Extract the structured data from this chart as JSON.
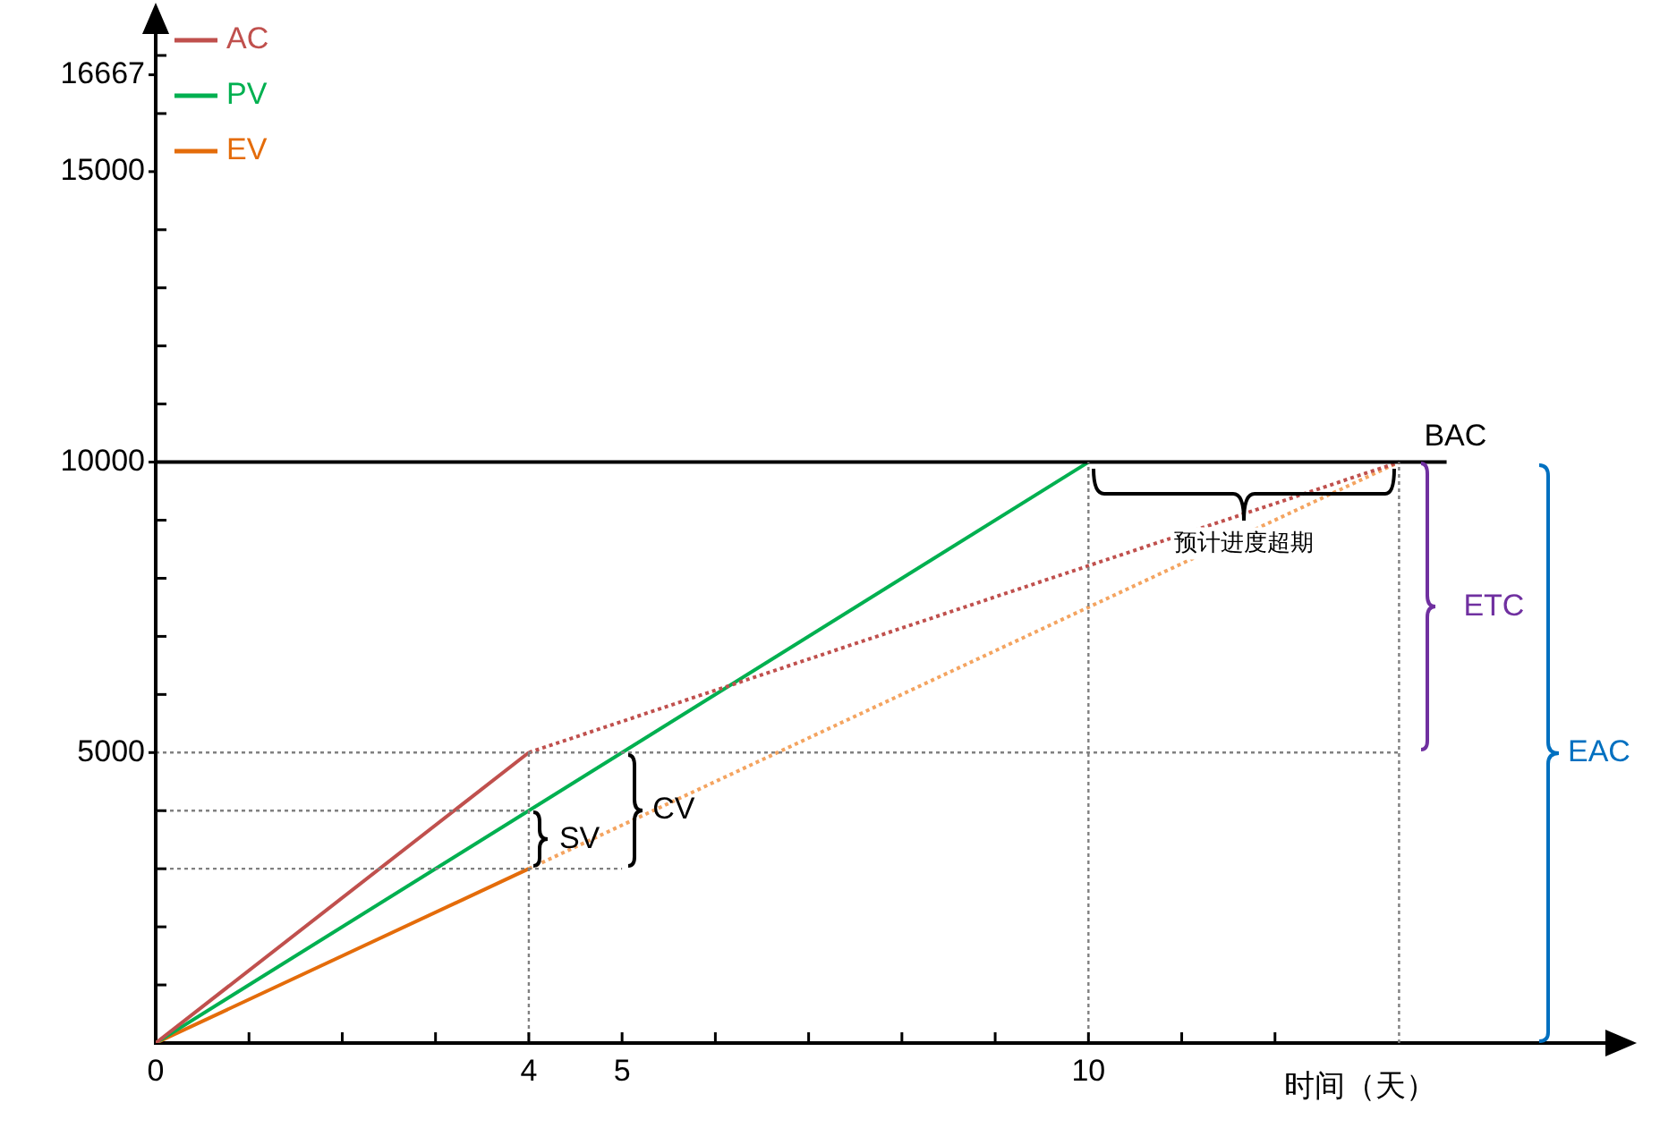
{
  "chart_data": {
    "type": "line",
    "xlabel": "时间（天）",
    "legend": "top left",
    "grid": false,
    "marker": "none",
    "xlim": [
      0,
      15.6
    ],
    "ylim": [
      0,
      17400
    ],
    "xticks": [
      0,
      {
        "value": 1,
        "label": null
      },
      {
        "value": 2,
        "label": null
      },
      {
        "value": 3,
        "label": null
      },
      4,
      5,
      {
        "value": 6,
        "label": null
      },
      {
        "value": 7,
        "label": null
      },
      {
        "value": 8,
        "label": null
      },
      {
        "value": 9,
        "label": null
      },
      10,
      {
        "value": 11,
        "label": null
      },
      {
        "value": 12,
        "label": null
      }
    ],
    "yticks": [
      {
        "value": 1000,
        "label": null
      },
      {
        "value": 2000,
        "label": null
      },
      {
        "value": 3000,
        "label": null
      },
      {
        "value": 4000,
        "label": null
      },
      5000,
      {
        "value": 6000,
        "label": null
      },
      {
        "value": 7000,
        "label": null
      },
      {
        "value": 8000,
        "label": null
      },
      {
        "value": 9000,
        "label": null
      },
      10000,
      {
        "value": 11000,
        "label": null
      },
      {
        "value": 12000,
        "label": null
      },
      {
        "value": 13000,
        "label": null
      },
      {
        "value": 14000,
        "label": null
      },
      15000,
      {
        "value": 16000,
        "label": null
      },
      16667,
      {
        "value": 17000,
        "label": null
      }
    ],
    "series": [
      {
        "color": "#808080",
        "line_style": "dotted",
        "x": [
          0,
          13.33
        ],
        "values": [
          5000,
          5000
        ]
      },
      {
        "color": "#808080",
        "line_style": "dotted",
        "x": [
          0,
          4
        ],
        "values": [
          4000,
          4000
        ]
      },
      {
        "color": "#808080",
        "line_style": "dotted",
        "x": [
          0,
          5
        ],
        "values": [
          3000,
          3000
        ]
      },
      {
        "color": "#808080",
        "line_style": "dotted",
        "x": [
          4,
          4
        ],
        "values": [
          0,
          5000
        ]
      },
      {
        "color": "#808080",
        "line_style": "dotted",
        "x": [
          10,
          10
        ],
        "values": [
          0,
          10000
        ]
      },
      {
        "color": "#808080",
        "line_style": "dotted",
        "x": [
          13.33,
          13.33
        ],
        "values": [
          0,
          10000
        ]
      },
      {
        "color": "#000000",
        "line_style": "solid",
        "x": [
          0,
          13.84
        ],
        "values": [
          10000,
          10000
        ]
      },
      {
        "color": "#c0504d",
        "line_style": "dotted",
        "x": [
          4,
          13.33
        ],
        "values": [
          5000,
          10000
        ]
      },
      {
        "color": "#f4a460",
        "line_style": "dotted",
        "x": [
          4,
          13.33
        ],
        "values": [
          3000,
          10000
        ]
      },
      {
        "name": "AC",
        "color": "#c0504d",
        "line_style": "solid",
        "x": [
          0,
          4
        ],
        "values": [
          0,
          5000
        ]
      },
      {
        "name": "PV",
        "color": "#00b050",
        "line_style": "solid",
        "x": [
          0,
          10
        ],
        "values": [
          0,
          10000
        ]
      },
      {
        "name": "EV",
        "color": "#e46c0a",
        "line_style": "solid",
        "x": [
          0,
          4
        ],
        "values": [
          0,
          3000
        ]
      }
    ],
    "annotations": [
      {
        "text": "SV",
        "x": 4,
        "y": 3500
      },
      {
        "text": "CV",
        "x": 5,
        "y": 5000
      },
      {
        "text": "ETC",
        "x": 13.33,
        "y": 7500
      },
      "EAC",
      {
        "text": "预计进度超期",
        "x": 11.67,
        "y": 9000
      },
      {
        "text": "BAC",
        "x": 13.33,
        "y": 10000
      }
    ]
  }
}
